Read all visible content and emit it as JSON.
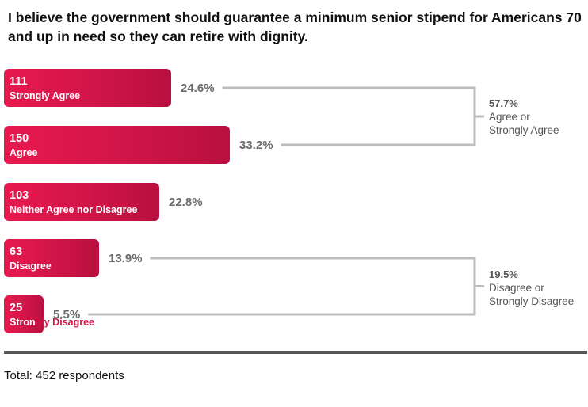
{
  "chart_data": {
    "type": "bar",
    "orientation": "horizontal",
    "title": "I believe the government should guarantee a minimum senior stipend for Americans 70 and up in need so they can retire with dignity.",
    "categories": [
      "Strongly Agree",
      "Agree",
      "Neither Agree nor Disagree",
      "Disagree",
      "Strongly Disagree"
    ],
    "values": [
      111,
      150,
      103,
      63,
      25
    ],
    "percents": [
      "24.6%",
      "33.2%",
      "22.8%",
      "13.9%",
      "5.5%"
    ],
    "groups": [
      {
        "percent": "57.7%",
        "label_line1": "Agree or",
        "label_line2": "Strongly Agree"
      },
      {
        "percent": "19.5%",
        "label_line1": "Disagree or",
        "label_line2": "Strongly Disagree"
      }
    ],
    "bar_color": "#d01548",
    "total_text": "Total: 452 respondents"
  }
}
